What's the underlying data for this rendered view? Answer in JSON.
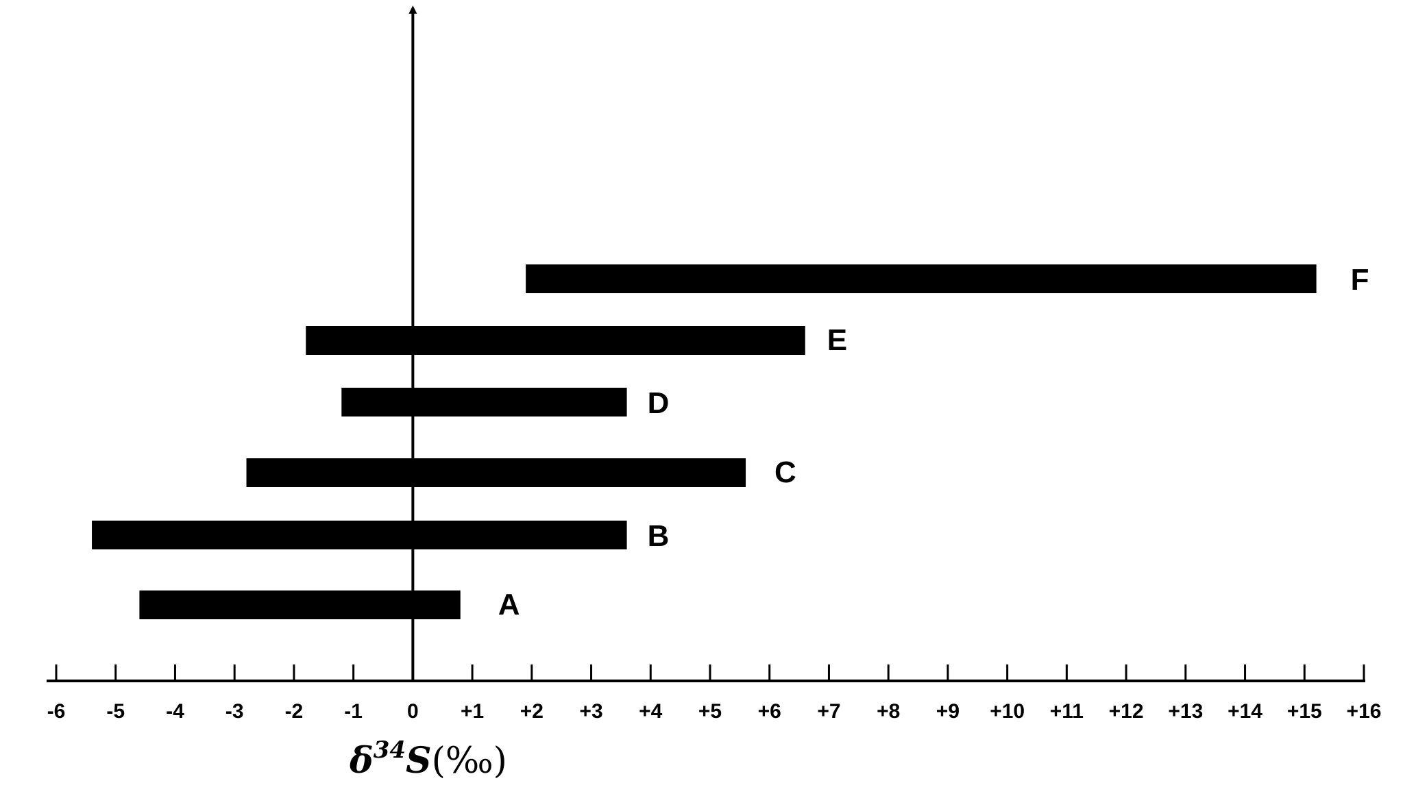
{
  "colors": {
    "bar": "#000000",
    "axis": "#000000",
    "background": "#ffffff"
  },
  "chart_data": {
    "type": "bar",
    "orientation": "horizontal-range",
    "xlabel": {
      "symbol": "δ",
      "superscript": "34",
      "element": "S",
      "unit": "(‰)"
    },
    "ylabel": "",
    "xlim": [
      -6,
      16
    ],
    "tick_values": [
      -6,
      -5,
      -4,
      -3,
      -2,
      -1,
      0,
      1,
      2,
      3,
      4,
      5,
      6,
      7,
      8,
      9,
      10,
      11,
      12,
      13,
      14,
      15,
      16
    ],
    "tick_labels": [
      "-6",
      "-5",
      "-4",
      "-3",
      "-2",
      "-1",
      "0",
      "+1",
      "+2",
      "+3",
      "+4",
      "+5",
      "+6",
      "+7",
      "+8",
      "+9",
      "+10",
      "+11",
      "+12",
      "+13",
      "+14",
      "+15",
      "+16"
    ],
    "vertical_axis_at": 0,
    "grid": false,
    "legend": "none",
    "categories": [
      "A",
      "B",
      "C",
      "D",
      "E",
      "F"
    ],
    "ranges": [
      {
        "label": "A",
        "min": -4.6,
        "max": 0.8
      },
      {
        "label": "B",
        "min": -5.4,
        "max": 3.6
      },
      {
        "label": "C",
        "min": -2.8,
        "max": 5.6
      },
      {
        "label": "D",
        "min": -1.2,
        "max": 3.6
      },
      {
        "label": "E",
        "min": -1.8,
        "max": 6.6
      },
      {
        "label": "F",
        "min": 1.9,
        "max": 15.2
      }
    ]
  }
}
